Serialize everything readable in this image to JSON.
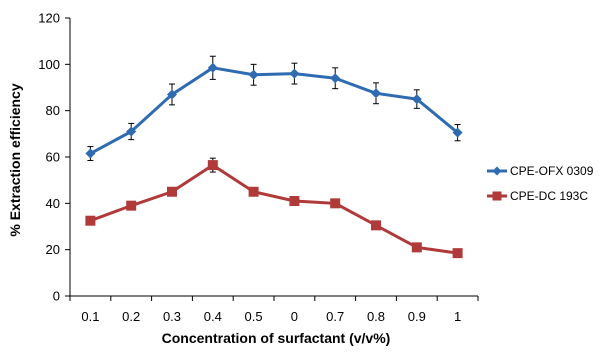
{
  "chart_data": {
    "type": "line",
    "title": "",
    "xlabel": "Concentration  of surfactant  (v/v%)",
    "ylabel": "% Extraction  efficiency",
    "categories": [
      "0.1",
      "0.2",
      "0.3",
      "0.4",
      "0.5",
      "0",
      "0.7",
      "0.8",
      "0.9",
      "1"
    ],
    "ylim": [
      0,
      120
    ],
    "yticks": [
      0,
      20,
      40,
      60,
      80,
      100,
      120
    ],
    "grid": false,
    "legend_position": "right",
    "series": [
      {
        "name": "CPE-OFX 0309",
        "color": "#2E6BB0",
        "marker": "diamond",
        "values": [
          61.5,
          71,
          87,
          98.5,
          95.5,
          96,
          94,
          87.5,
          85,
          70.5
        ],
        "errors": [
          3,
          3.5,
          4.5,
          5,
          4.5,
          4.5,
          4.5,
          4.5,
          4,
          3.5
        ]
      },
      {
        "name": "CPE-DC 193C",
        "color": "#B03A3A",
        "marker": "square",
        "values": [
          32.5,
          39,
          45,
          56.5,
          45,
          41,
          40,
          30.5,
          21,
          18.5
        ],
        "errors": [
          0,
          0,
          1.5,
          3,
          0,
          0,
          0,
          0,
          0,
          0
        ]
      }
    ]
  }
}
